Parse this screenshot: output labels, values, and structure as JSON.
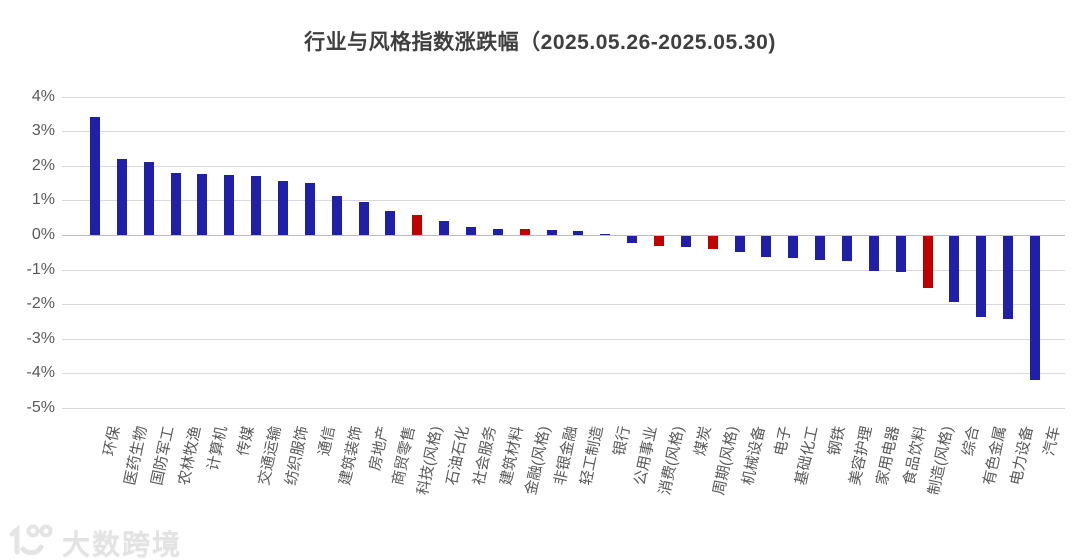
{
  "title": "行业与风格指数涨跌幅（2025.05.26-2025.05.30)",
  "watermark": {
    "brand": "大数跨境",
    "logo": "10100"
  },
  "colors": {
    "bar_industry": "#1f1fa8",
    "bar_style": "#c00000",
    "gridline": "#d9d9d9",
    "zero_line": "#bdbdbd",
    "axis_text": "#595959",
    "title_text": "#3f3f3f"
  },
  "chart_data": {
    "type": "bar",
    "title": "行业与风格指数涨跌幅（2025.05.26-2025.05.30)",
    "xlabel": "",
    "ylabel": "",
    "unit": "%",
    "ylim": [
      -5,
      4
    ],
    "ytick_labels": [
      "4%",
      "3%",
      "2%",
      "1%",
      "0%",
      "-1%",
      "-2%",
      "-3%",
      "-4%",
      "-5%"
    ],
    "grid": true,
    "legend_position": "none",
    "categories": [
      "环保",
      "医药生物",
      "国防军工",
      "农林牧渔",
      "计算机",
      "传媒",
      "交通运输",
      "纺织服饰",
      "通信",
      "建筑装饰",
      "房地产",
      "商贸零售",
      "科技(风格)",
      "石油石化",
      "社会服务",
      "建筑材料",
      "金融(风格)",
      "非银金融",
      "轻工制造",
      "银行",
      "公用事业",
      "消费(风格)",
      "煤炭",
      "周期(风格)",
      "机械设备",
      "电子",
      "基础化工",
      "钢铁",
      "美容护理",
      "家用电器",
      "食品饮料",
      "制造(风格)",
      "综合",
      "有色金属",
      "电力设备",
      "汽车"
    ],
    "values": [
      3.4,
      2.2,
      2.1,
      1.8,
      1.76,
      1.72,
      1.7,
      1.55,
      1.5,
      1.12,
      0.95,
      0.7,
      0.58,
      0.4,
      0.22,
      0.18,
      0.16,
      0.15,
      0.12,
      0.03,
      -0.2,
      -0.3,
      -0.33,
      -0.38,
      -0.45,
      -0.6,
      -0.65,
      -0.7,
      -0.72,
      -1.0,
      -1.05,
      -1.5,
      -1.9,
      -2.35,
      -2.4,
      -4.15
    ],
    "red_bar_indices": [
      12,
      16,
      21,
      23,
      31
    ]
  }
}
